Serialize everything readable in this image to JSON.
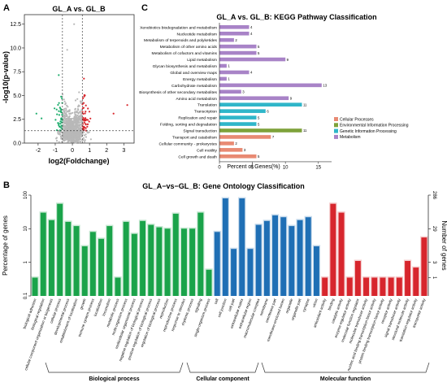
{
  "colors": {
    "green": "#1aa34a",
    "blue": "#1f6fb5",
    "red": "#d7262d",
    "volcano_green": "#1fae6e",
    "volcano_red": "#d9262c",
    "volcano_gray": "#b8b8b8",
    "kegg_cellular": "#e88a73",
    "kegg_env": "#7ea23a",
    "kegg_genetic": "#2fb6c9",
    "kegg_metab": "#a883c7"
  },
  "panelA": {
    "label": "A",
    "chart_data": {
      "type": "scatter",
      "title": "GL_A vs. GL_B",
      "xlabel": "log2(Foldchange)",
      "ylabel": "-log10(p-value)",
      "xlim": [
        -2.8,
        3.6
      ],
      "ylim": [
        0,
        13.5
      ],
      "xticks": [
        "-2",
        "-1",
        "0",
        "1",
        "2",
        "3"
      ],
      "yticks": [
        "0.0",
        "2.5",
        "5.0",
        "7.5",
        "10.0",
        "12.5"
      ],
      "threshold_lines": {
        "x": [
          -0.58,
          0.58
        ],
        "y": 1.3
      },
      "series": []
    }
  },
  "panelB": {
    "label": "B",
    "chart_data": {
      "type": "bar",
      "title": "GL_A−vs−GL_B: Gene Ontology Classification",
      "ylabel": "Percentage of genes",
      "ylabel_right": "Number of genes",
      "yscale": "log",
      "ylim": [
        0.1,
        100
      ],
      "left_ticks": [
        "100",
        "10",
        "1",
        "0.1"
      ],
      "right_ticks": [
        "286",
        "29",
        "3",
        "1"
      ],
      "groups": [
        "Biological process",
        "Cellular component",
        "Molecular function"
      ],
      "categories": [
        {
          "label": "biological adhesion",
          "group": 0,
          "value": 0.35
        },
        {
          "label": "biological regulation",
          "group": 0,
          "value": 30
        },
        {
          "label": "cellular component organization or biogenesis",
          "group": 0,
          "value": 18
        },
        {
          "label": "cellular process",
          "group": 0,
          "value": 55
        },
        {
          "label": "developmental process",
          "group": 0,
          "value": 16
        },
        {
          "label": "establishment of localization",
          "group": 0,
          "value": 12
        },
        {
          "label": "growth",
          "group": 0,
          "value": 3
        },
        {
          "label": "immune system process",
          "group": 0,
          "value": 8
        },
        {
          "label": "localization",
          "group": 0,
          "value": 5
        },
        {
          "label": "locomotion",
          "group": 0,
          "value": 12
        },
        {
          "label": "metabolic process",
          "group": 0,
          "value": 0.35
        },
        {
          "label": "multi-organism process",
          "group": 0,
          "value": 16
        },
        {
          "label": "multicellular organismal process",
          "group": 0,
          "value": 7
        },
        {
          "label": "negative regulation of biological process",
          "group": 0,
          "value": 17
        },
        {
          "label": "positive regulation of biological process",
          "group": 0,
          "value": 13
        },
        {
          "label": "regulation of biological process",
          "group": 0,
          "value": 11
        },
        {
          "label": "reproduction",
          "group": 0,
          "value": 10
        },
        {
          "label": "reproductive process",
          "group": 0,
          "value": 28
        },
        {
          "label": "response to stimulus",
          "group": 0,
          "value": 10
        },
        {
          "label": "rhythmic process",
          "group": 0,
          "value": 10
        },
        {
          "label": "signaling",
          "group": 0,
          "value": 30
        },
        {
          "label": "single-organism process",
          "group": 0,
          "value": 0.6
        },
        {
          "label": "cell",
          "group": 1,
          "value": 8
        },
        {
          "label": "cell junction",
          "group": 1,
          "value": 80
        },
        {
          "label": "cell part",
          "group": 1,
          "value": 2.5
        },
        {
          "label": "extracellular matrix",
          "group": 1,
          "value": 80
        },
        {
          "label": "extracellular region",
          "group": 1,
          "value": 2.5
        },
        {
          "label": "macromolecular complex",
          "group": 1,
          "value": 13
        },
        {
          "label": "membrane",
          "group": 1,
          "value": 17
        },
        {
          "label": "membrane part",
          "group": 1,
          "value": 25
        },
        {
          "label": "membrane-enclosed lumen",
          "group": 1,
          "value": 22
        },
        {
          "label": "organelle",
          "group": 1,
          "value": 12
        },
        {
          "label": "organelle part",
          "group": 1,
          "value": 18
        },
        {
          "label": "synapse",
          "group": 1,
          "value": 22
        },
        {
          "label": "virion",
          "group": 1,
          "value": 3
        },
        {
          "label": "antioxidant activity",
          "group": 2,
          "value": 0.35
        },
        {
          "label": "binding",
          "group": 2,
          "value": 55
        },
        {
          "label": "catalytic activity",
          "group": 2,
          "value": 30
        },
        {
          "label": "enzyme regulator activity",
          "group": 2,
          "value": 0.35
        },
        {
          "label": "molecular function regulator",
          "group": 2,
          "value": 1.1
        },
        {
          "label": "molecular transducer activity",
          "group": 2,
          "value": 0.35
        },
        {
          "label": "nucleic acid binding transcription factor activity",
          "group": 2,
          "value": 0.35
        },
        {
          "label": "protein binding transcription factor activity",
          "group": 2,
          "value": 0.35
        },
        {
          "label": "receptor activity",
          "group": 2,
          "value": 0.35
        },
        {
          "label": "signal transducer activity",
          "group": 2,
          "value": 0.35
        },
        {
          "label": "structural molecule activity",
          "group": 2,
          "value": 1.1
        },
        {
          "label": "translation regulator activity",
          "group": 2,
          "value": 0.7
        },
        {
          "label": "transporter activity",
          "group": 2,
          "value": 5.5
        }
      ]
    }
  },
  "panelC": {
    "label": "C",
    "chart_data": {
      "type": "bar",
      "orientation": "horizontal",
      "title": "GL_A vs. GL_B: KEGG Pathway Classification",
      "xlabel": "Percent of Genes(%)",
      "xlim": [
        0,
        17
      ],
      "xticks": [
        "0",
        "5",
        "10",
        "15"
      ],
      "legend_position": "right",
      "legend": [
        {
          "name": "Cellular Processes",
          "colorKey": "kegg_cellular"
        },
        {
          "name": "Environmental Information Processing",
          "colorKey": "kegg_env"
        },
        {
          "name": "Genetic Information Processing",
          "colorKey": "kegg_genetic"
        },
        {
          "name": "Metabolism",
          "colorKey": "kegg_metab"
        }
      ],
      "categories": [
        {
          "label": "Xenobiotics biodegradation and metabolism",
          "value": 4.5,
          "count": "4",
          "cls": 3
        },
        {
          "label": "Nucleotide metabolism",
          "value": 4.5,
          "count": "4",
          "cls": 3
        },
        {
          "label": "Metabolism of terpenoids and polyketides",
          "value": 2.2,
          "count": "2",
          "cls": 3
        },
        {
          "label": "Metabolism of other amino acids",
          "value": 5.6,
          "count": "5",
          "cls": 3
        },
        {
          "label": "Metabolism of cofactors and vitamins",
          "value": 5.6,
          "count": "5",
          "cls": 3
        },
        {
          "label": "Lipid metabolism",
          "value": 10,
          "count": "9",
          "cls": 3
        },
        {
          "label": "Glycan biosynthesis and metabolism",
          "value": 1.1,
          "count": "1",
          "cls": 3
        },
        {
          "label": "Global and overview maps",
          "value": 4.5,
          "count": "4",
          "cls": 3
        },
        {
          "label": "Energy metabolism",
          "value": 1.1,
          "count": "1",
          "cls": 3
        },
        {
          "label": "Carbohydrate metabolism",
          "value": 15.5,
          "count": "13",
          "cls": 3
        },
        {
          "label": "Biosynthesis of other secondary metabolites",
          "value": 3.3,
          "count": "3",
          "cls": 3
        },
        {
          "label": "Amino acid metabolism",
          "value": 10.5,
          "count": "9",
          "cls": 3
        },
        {
          "label": "Translation",
          "value": 12.5,
          "count": "11",
          "cls": 2
        },
        {
          "label": "Transcription",
          "value": 7,
          "count": "6",
          "cls": 2
        },
        {
          "label": "Replication and repair",
          "value": 5.6,
          "count": "5",
          "cls": 2
        },
        {
          "label": "Folding, sorting and degradation",
          "value": 5.6,
          "count": "5",
          "cls": 2
        },
        {
          "label": "Signal transduction",
          "value": 12.5,
          "count": "11",
          "cls": 1
        },
        {
          "label": "Transport and catabolism",
          "value": 7.8,
          "count": "7",
          "cls": 0
        },
        {
          "label": "Cellular community - prokaryotes",
          "value": 2.2,
          "count": "2",
          "cls": 0
        },
        {
          "label": "Cell motility",
          "value": 3.5,
          "count": "3",
          "cls": 0
        },
        {
          "label": "Cell growth and death",
          "value": 5.6,
          "count": "5",
          "cls": 0
        }
      ]
    }
  }
}
